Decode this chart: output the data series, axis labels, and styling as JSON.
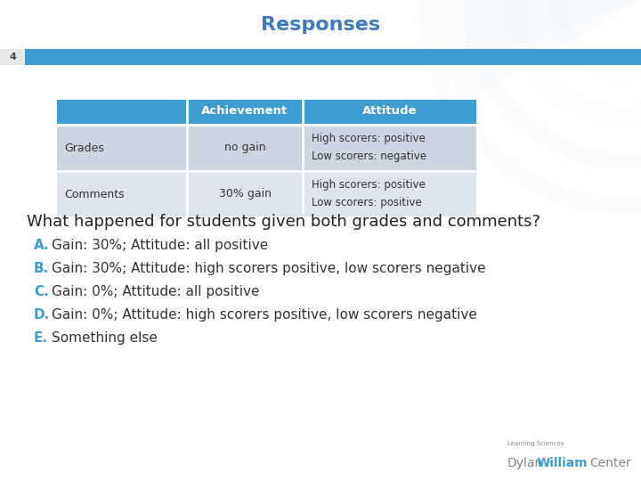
{
  "title": "Responses",
  "slide_number": "4",
  "header_bar_color": "#3d9cd2",
  "background_color": "#ffffff",
  "title_color": "#3d7bbf",
  "title_fontsize": 16,
  "table": {
    "col_headers": [
      "",
      "Achievement",
      "Attitude"
    ],
    "rows": [
      {
        "label": "Grades",
        "achievement": "no gain",
        "attitude_line1": "High scorers: positive",
        "attitude_line2": "Low scorers: negative"
      },
      {
        "label": "Comments",
        "achievement": "30% gain",
        "attitude_line1": "High scorers: positive",
        "attitude_line2": "Low scorers: positive"
      }
    ],
    "header_bg": "#3d9cd2",
    "header_text_color": "#ffffff",
    "row1_bg": "#cdd5e0",
    "row2_bg": "#dde4ee",
    "text_color": "#333333",
    "border_color": "#ffffff"
  },
  "question": "What happened for students given both grades and comments?",
  "options": [
    {
      "letter": "A",
      "text": "Gain: 30%; Attitude: all positive"
    },
    {
      "letter": "B",
      "text": "Gain: 30%; Attitude: high scorers positive, low scorers negative"
    },
    {
      "letter": "C",
      "text": "Gain: 0%; Attitude: all positive"
    },
    {
      "letter": "D",
      "text": "Gain: 0%; Attitude: high scorers positive, low scorers negative"
    },
    {
      "letter": "E",
      "text": "Something else"
    }
  ],
  "option_letter_color": "#3d9cd2",
  "option_text_color": "#333333",
  "question_color": "#222222",
  "question_fontsize": 13,
  "option_fontsize": 11,
  "logo_text1": "Learning Sciences",
  "logo_text2_part1": "Dylan",
  "logo_text2_part2": "William",
  "logo_text2_part3": "Center",
  "logo_color_gray": "#888888",
  "logo_color_blue": "#3d9cd2",
  "watermark_color": "#d8eaf5"
}
